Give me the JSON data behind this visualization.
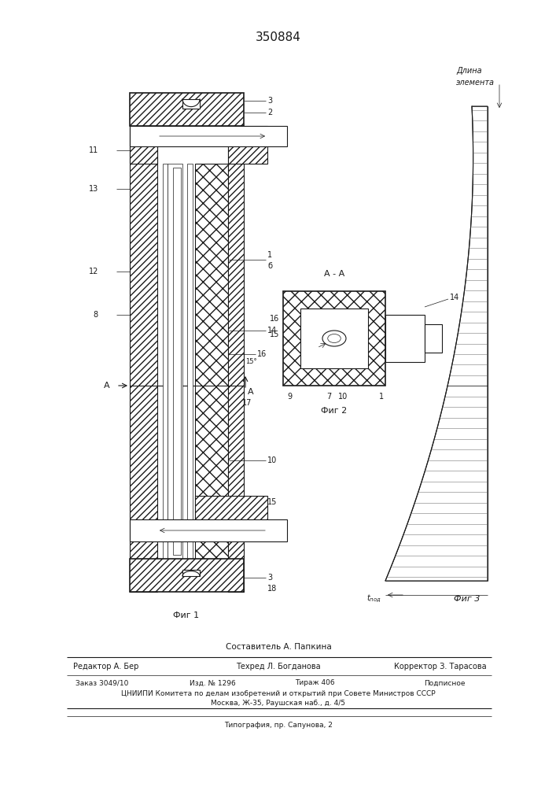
{
  "patent_number": "350884",
  "bg_color": "#ffffff",
  "dc": "#1a1a1a",
  "fig_width": 7.07,
  "fig_height": 10.0,
  "footer": {
    "sostavitel": "Составитель А. Папкина",
    "redaktor": "Редактор А. Бер",
    "tehred": "Техред Л. Богданова",
    "korrektor": "Корректор З. Тарасова",
    "zakaz": "Заказ 3049/10",
    "izd": "Изд. № 1296",
    "tirazh": "Тираж 406",
    "podpisnoe": "Подписное",
    "tsniip": "ЦНИИПИ Комитета по делам изобретений и открытий при Совете Министров СССР",
    "moskva": "Москва, Ж-35, Раушская наб., д. 4/5",
    "tipografia": "Типография, пр. Сапунова, 2"
  }
}
